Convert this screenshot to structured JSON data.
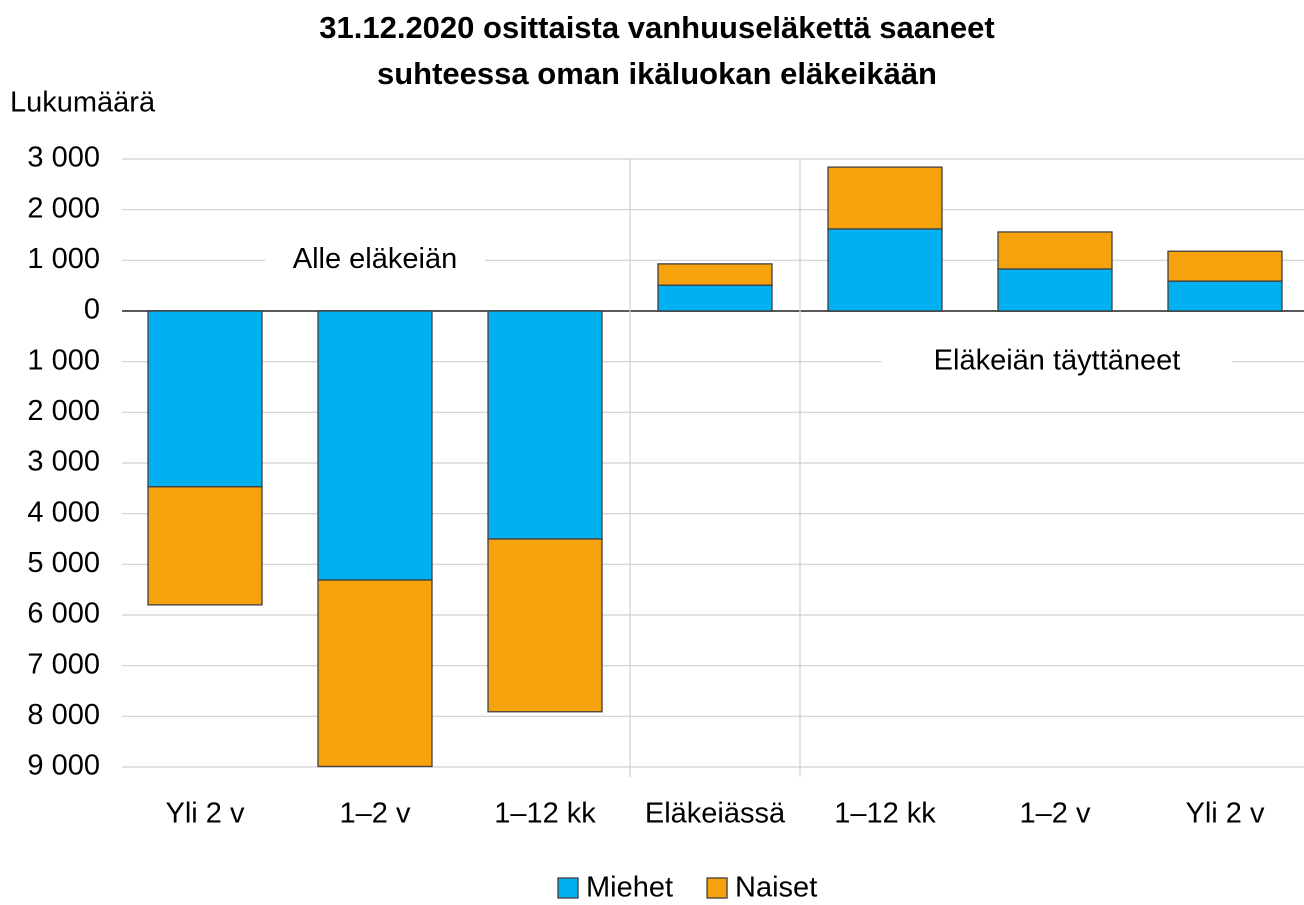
{
  "chart_data": {
    "type": "bar",
    "stacked": true,
    "title": [
      "31.12.2020 osittaista vanhuuseläkettä saaneet",
      "suhteessa oman ikäluokan eläkeikään"
    ],
    "y_label": "Lukumäärä",
    "annotations": [
      "Alle eläkeiän",
      "Eläkeiän täyttäneet"
    ],
    "categories": [
      "Yli 2 v",
      "1–2 v",
      "1–12 kk",
      "Eläkeiässä",
      "1–12 kk",
      "1–2 v",
      "Yli 2 v"
    ],
    "series": [
      {
        "name": "Miehet",
        "color": "#00b0f0",
        "values": [
          -3470,
          -5310,
          -4500,
          510,
          1620,
          830,
          590
        ]
      },
      {
        "name": "Naiset",
        "color": "#f5a20c",
        "values": [
          -2330,
          -3680,
          -3410,
          420,
          1220,
          730,
          590
        ]
      }
    ],
    "ylim": [
      -9000,
      3000
    ],
    "yticks": [
      {
        "value": -9000,
        "label": "9 000"
      },
      {
        "value": -8000,
        "label": "8 000"
      },
      {
        "value": -7000,
        "label": "7 000"
      },
      {
        "value": -6000,
        "label": "6 000"
      },
      {
        "value": -5000,
        "label": "5 000"
      },
      {
        "value": -4000,
        "label": "4 000"
      },
      {
        "value": -3000,
        "label": "3 000"
      },
      {
        "value": -2000,
        "label": "2 000"
      },
      {
        "value": -1000,
        "label": "1 000"
      },
      0,
      {
        "value": 1000,
        "label": "1 000"
      },
      {
        "value": 2000,
        "label": "2 000"
      },
      {
        "value": 3000,
        "label": "3 000"
      }
    ],
    "grid": true,
    "legend": "bottom"
  }
}
